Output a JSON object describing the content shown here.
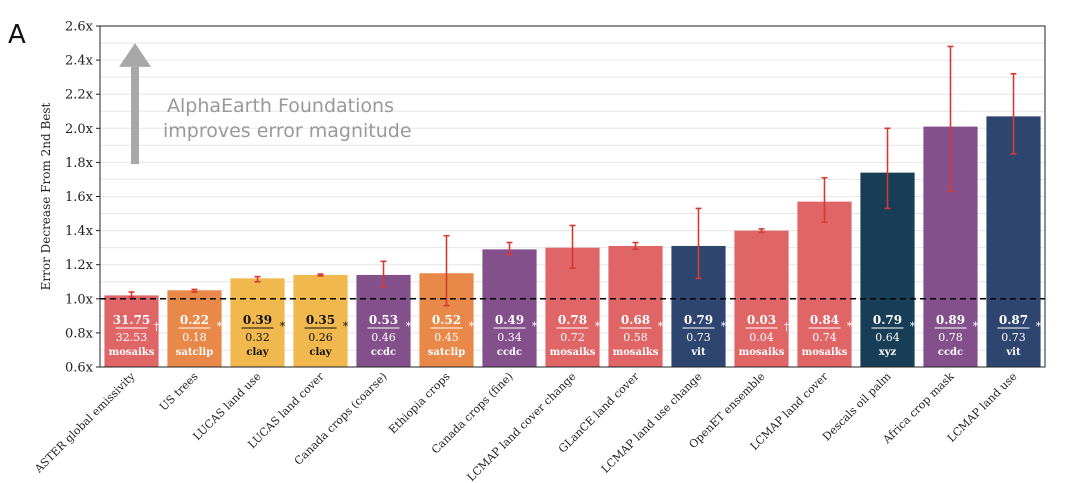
{
  "panel_letter": "A",
  "chart_data": {
    "type": "bar",
    "title": "",
    "xlabel": "",
    "ylabel": "Error Decrease From 2nd Best",
    "ylim": [
      0.6,
      2.6
    ],
    "yticks": [
      "0.6x",
      "0.8x",
      "1.0x",
      "1.2x",
      "1.4x",
      "1.6x",
      "1.8x",
      "2.0x",
      "2.2x",
      "2.4x",
      "2.6x"
    ],
    "ytick_values": [
      0.6,
      0.8,
      1.0,
      1.2,
      1.4,
      1.6,
      1.8,
      2.0,
      2.2,
      2.4,
      2.6
    ],
    "grid": true,
    "reference_line": 1.0,
    "annotation": {
      "line1": "AlphaEarth Foundations",
      "line2": "improves error magnitude"
    },
    "colors": {
      "red": "#e06566",
      "orange": "#e8894a",
      "yellow": "#f1b84e",
      "purple": "#84508c",
      "navy": "#2e4570",
      "darknavy": "#173d57",
      "error": "#d43a32",
      "grid": "#e6e6e6",
      "arrow": "#a8a8a8"
    },
    "bars": [
      {
        "category": "ASTER global emissivity",
        "value": 1.02,
        "err_low": 1.01,
        "err_high": 1.04,
        "top": "31.75",
        "bottom": "32.53",
        "model": "mosaiks",
        "mark": "†",
        "color": "red",
        "text_color": "#ffffff"
      },
      {
        "category": "US trees",
        "value": 1.05,
        "err_low": 1.04,
        "err_high": 1.055,
        "top": "0.22",
        "bottom": "0.18",
        "model": "satclip",
        "mark": "*",
        "color": "orange",
        "text_color": "#ffffff"
      },
      {
        "category": "LUCAS land use",
        "value": 1.12,
        "err_low": 1.1,
        "err_high": 1.13,
        "top": "0.39",
        "bottom": "0.32",
        "model": "clay",
        "mark": "*",
        "color": "yellow",
        "text_color": "#111111"
      },
      {
        "category": "LUCAS land cover",
        "value": 1.14,
        "err_low": 1.135,
        "err_high": 1.145,
        "top": "0.35",
        "bottom": "0.26",
        "model": "clay",
        "mark": "*",
        "color": "yellow",
        "text_color": "#111111"
      },
      {
        "category": "Canada crops (coarse)",
        "value": 1.14,
        "err_low": 1.07,
        "err_high": 1.22,
        "top": "0.53",
        "bottom": "0.46",
        "model": "ccdc",
        "mark": "*",
        "color": "purple",
        "text_color": "#ffffff"
      },
      {
        "category": "Ethiopia crops",
        "value": 1.15,
        "err_low": 0.96,
        "err_high": 1.37,
        "top": "0.52",
        "bottom": "0.45",
        "model": "satclip",
        "mark": "*",
        "color": "orange",
        "text_color": "#ffffff"
      },
      {
        "category": "Canada crops (fine)",
        "value": 1.29,
        "err_low": 1.26,
        "err_high": 1.33,
        "top": "0.49",
        "bottom": "0.34",
        "model": "ccdc",
        "mark": "*",
        "color": "purple",
        "text_color": "#ffffff"
      },
      {
        "category": "LCMAP land cover change",
        "value": 1.3,
        "err_low": 1.18,
        "err_high": 1.43,
        "top": "0.78",
        "bottom": "0.72",
        "model": "mosaiks",
        "mark": "*",
        "color": "red",
        "text_color": "#ffffff"
      },
      {
        "category": "GLanCE land cover",
        "value": 1.31,
        "err_low": 1.29,
        "err_high": 1.33,
        "top": "0.68",
        "bottom": "0.58",
        "model": "mosaiks",
        "mark": "*",
        "color": "red",
        "text_color": "#ffffff"
      },
      {
        "category": "LCMAP land use change",
        "value": 1.31,
        "err_low": 1.12,
        "err_high": 1.53,
        "top": "0.79",
        "bottom": "0.73",
        "model": "vit",
        "mark": "*",
        "color": "navy",
        "text_color": "#ffffff"
      },
      {
        "category": "OpenET ensemble",
        "value": 1.4,
        "err_low": 1.39,
        "err_high": 1.41,
        "top": "0.03",
        "bottom": "0.04",
        "model": "mosaiks",
        "mark": "†",
        "color": "red",
        "text_color": "#ffffff"
      },
      {
        "category": "LCMAP land cover",
        "value": 1.57,
        "err_low": 1.45,
        "err_high": 1.71,
        "top": "0.84",
        "bottom": "0.74",
        "model": "mosaiks",
        "mark": "*",
        "color": "red",
        "text_color": "#ffffff"
      },
      {
        "category": "Descals oil palm",
        "value": 1.74,
        "err_low": 1.53,
        "err_high": 2.0,
        "top": "0.79",
        "bottom": "0.64",
        "model": "xyz",
        "mark": "*",
        "color": "darknavy",
        "text_color": "#ffffff"
      },
      {
        "category": "Africa crop mask",
        "value": 2.01,
        "err_low": 1.63,
        "err_high": 2.48,
        "top": "0.89",
        "bottom": "0.78",
        "model": "ccdc",
        "mark": "*",
        "color": "purple",
        "text_color": "#ffffff"
      },
      {
        "category": "LCMAP land use",
        "value": 2.07,
        "err_low": 1.85,
        "err_high": 2.32,
        "top": "0.87",
        "bottom": "0.73",
        "model": "vit",
        "mark": "*",
        "color": "navy",
        "text_color": "#ffffff"
      }
    ]
  }
}
